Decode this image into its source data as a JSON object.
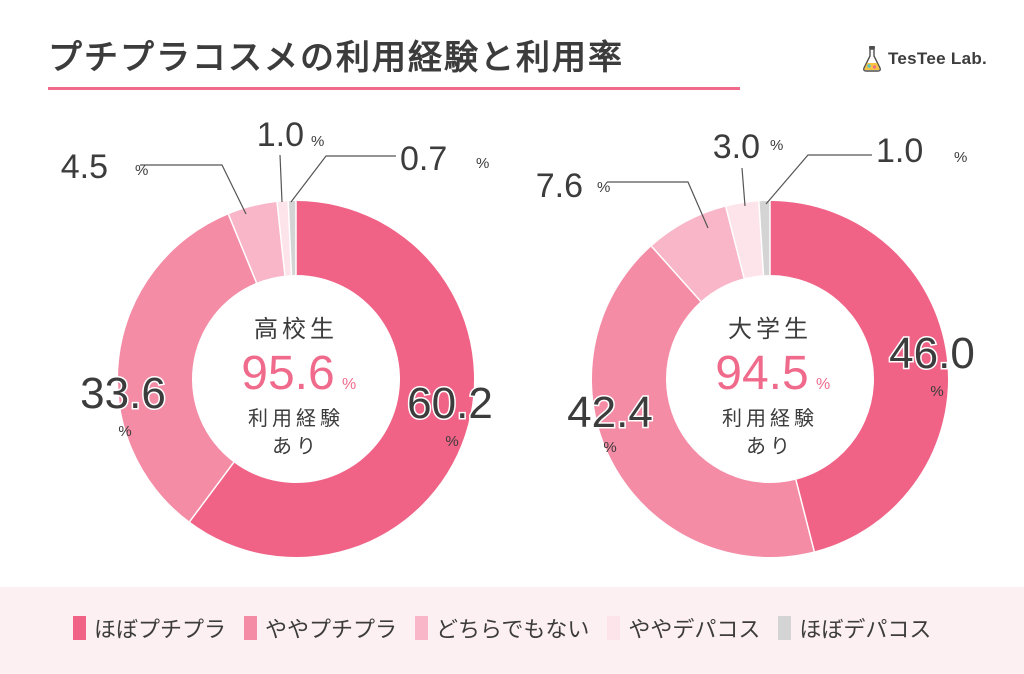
{
  "title": "プチプラコスメの利用経験と利用率",
  "logo": {
    "text": "TesTee Lab.",
    "icon": "flask-icon"
  },
  "colors": {
    "title_rule": "#f06a8c",
    "legend_background": "#fdf0f2",
    "text": "#3c3c3c"
  },
  "chart_data": [
    {
      "type": "pie",
      "style": "donut",
      "group": "高校生",
      "center_value": "95.6",
      "center_unit": "%",
      "center_caption_line1": "利用経験",
      "center_caption_line2": "あり",
      "categories": [
        "ほぼプチプラ",
        "ややプチプラ",
        "どちらでもない",
        "ややデパコス",
        "ほぼデパコス"
      ],
      "values": [
        60.2,
        33.6,
        4.5,
        1.0,
        0.7
      ],
      "value_labels": [
        "60.2",
        "33.6",
        "4.5",
        "1.0",
        "0.7"
      ],
      "unit": "%"
    },
    {
      "type": "pie",
      "style": "donut",
      "group": "大学生",
      "center_value": "94.5",
      "center_unit": "%",
      "center_caption_line1": "利用経験",
      "center_caption_line2": "あり",
      "categories": [
        "ほぼプチプラ",
        "ややプチプラ",
        "どちらでもない",
        "ややデパコス",
        "ほぼデパコス"
      ],
      "values": [
        46.0,
        42.4,
        7.6,
        3.0,
        1.0
      ],
      "value_labels": [
        "46.0",
        "42.4",
        "7.6",
        "3.0",
        "1.0"
      ],
      "unit": "%"
    }
  ],
  "legend": {
    "items": [
      {
        "label": "ほぼプチプラ",
        "color": "#f06286"
      },
      {
        "label": "ややプチプラ",
        "color": "#f48ca6"
      },
      {
        "label": "どちらでもない",
        "color": "#f8b6c8"
      },
      {
        "label": "ややデパコス",
        "color": "#fde4ea"
      },
      {
        "label": "ほぼデパコス",
        "color": "#d4d4d4"
      }
    ]
  }
}
